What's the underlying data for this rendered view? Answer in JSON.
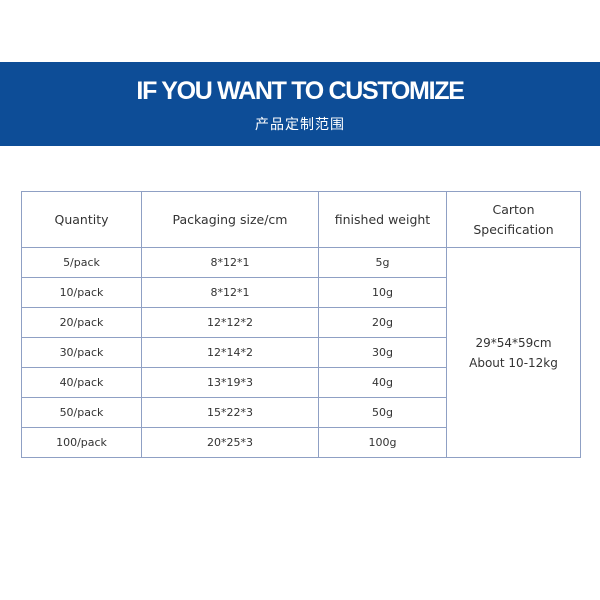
{
  "banner": {
    "title": "IF YOU WANT TO CUSTOMIZE",
    "subtitle": "产品定制范围",
    "background_color": "#0d4d97"
  },
  "table": {
    "headers": {
      "quantity": "Quantity",
      "packaging_size": "Packaging size/cm",
      "finished_weight": "finished weight",
      "carton_line1": "Carton",
      "carton_line2": "Specification"
    },
    "rows": [
      {
        "quantity": "5/pack",
        "size": "8*12*1",
        "weight": "5g"
      },
      {
        "quantity": "10/pack",
        "size": "8*12*1",
        "weight": "10g"
      },
      {
        "quantity": "20/pack",
        "size": "12*12*2",
        "weight": "20g"
      },
      {
        "quantity": "30/pack",
        "size": "12*14*2",
        "weight": "30g"
      },
      {
        "quantity": "40/pack",
        "size": "13*19*3",
        "weight": "40g"
      },
      {
        "quantity": "50/pack",
        "size": "15*22*3",
        "weight": "50g"
      },
      {
        "quantity": "100/pack",
        "size": "20*25*3",
        "weight": "100g"
      }
    ],
    "carton": {
      "dimensions": "29*54*59cm",
      "weight": "About 10-12kg"
    },
    "border_color": "#8fa0c4"
  }
}
